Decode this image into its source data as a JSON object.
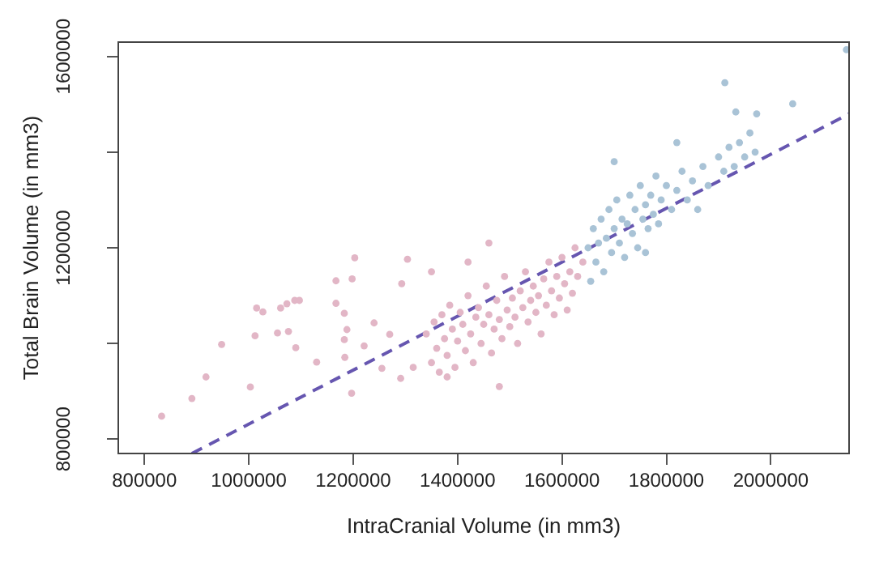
{
  "chart_data": {
    "type": "scatter",
    "xlabel": "IntraCranial Volume (in mm3)",
    "ylabel": "Total Brain Volume (in mm3)",
    "xlim": [
      750000,
      2150000
    ],
    "xticks": [
      800000,
      1000000,
      1200000,
      1400000,
      1600000,
      1800000,
      2000000
    ],
    "ylim": [
      770000,
      1630000
    ],
    "yticks": [
      800000,
      {
        "value": 1000000,
        "label": null
      },
      1200000,
      {
        "value": 1400000,
        "label": null
      },
      1600000
    ],
    "grid": false,
    "legend": false,
    "marker": "circle",
    "series": [
      {
        "color": "#e2b6c6",
        "x": [
          833000,
          891000,
          918000,
          948000,
          1003000,
          1015000,
          1027000,
          1012000,
          1061000,
          1055000,
          1073000,
          1088000,
          1097000,
          1076000,
          1090000,
          1130000,
          1167000,
          1167000,
          1183000,
          1198000,
          1203000,
          1183000,
          1188000,
          1197000,
          1184000,
          1240000,
          1221000,
          1255000,
          1270000,
          1293000,
          1304000,
          1291000,
          1315000,
          1340000,
          1350000,
          1355000,
          1360000,
          1365000,
          1370000,
          1375000,
          1380000,
          1385000,
          1390000,
          1395000,
          1400000,
          1405000,
          1410000,
          1415000,
          1420000,
          1425000,
          1430000,
          1435000,
          1440000,
          1445000,
          1450000,
          1455000,
          1460000,
          1465000,
          1470000,
          1475000,
          1480000,
          1485000,
          1490000,
          1495000,
          1500000,
          1505000,
          1510000,
          1515000,
          1520000,
          1525000,
          1530000,
          1535000,
          1540000,
          1545000,
          1550000,
          1555000,
          1560000,
          1565000,
          1570000,
          1575000,
          1580000,
          1585000,
          1590000,
          1595000,
          1600000,
          1605000,
          1610000,
          1615000,
          1620000,
          1625000,
          1630000,
          1640000,
          1420000,
          1460000,
          1350000,
          1480000,
          1380000
        ],
        "values": [
          848000,
          885000,
          930000,
          998000,
          909000,
          1074000,
          1066000,
          1016000,
          1074000,
          1022000,
          1083000,
          1090000,
          1090000,
          1025000,
          991000,
          961000,
          1131000,
          1084000,
          1063000,
          1135000,
          1179000,
          1008000,
          1029000,
          896000,
          971000,
          1043000,
          995000,
          948000,
          1019000,
          1125000,
          1176000,
          927000,
          950000,
          1020000,
          960000,
          1045000,
          990000,
          940000,
          1060000,
          1010000,
          975000,
          1080000,
          1030000,
          950000,
          1005000,
          1065000,
          1040000,
          985000,
          1100000,
          1020000,
          960000,
          1055000,
          1075000,
          1000000,
          1040000,
          1120000,
          1060000,
          980000,
          1030000,
          1090000,
          1050000,
          1010000,
          1140000,
          1070000,
          1035000,
          1095000,
          1055000,
          1000000,
          1110000,
          1075000,
          1150000,
          1045000,
          1090000,
          1120000,
          1065000,
          1100000,
          1020000,
          1135000,
          1080000,
          1170000,
          1110000,
          1060000,
          1140000,
          1095000,
          1180000,
          1125000,
          1070000,
          1150000,
          1105000,
          1200000,
          1140000,
          1170000,
          1170000,
          1210000,
          1150000,
          910000,
          930000
        ]
      },
      {
        "color": "#a9c3d6",
        "x": [
          1650000,
          1655000,
          1660000,
          1665000,
          1670000,
          1675000,
          1680000,
          1685000,
          1690000,
          1695000,
          1700000,
          1705000,
          1710000,
          1715000,
          1720000,
          1725000,
          1730000,
          1735000,
          1740000,
          1745000,
          1750000,
          1755000,
          1760000,
          1765000,
          1770000,
          1775000,
          1780000,
          1785000,
          1790000,
          1800000,
          1810000,
          1820000,
          1830000,
          1840000,
          1850000,
          1860000,
          1870000,
          1880000,
          1900000,
          1910000,
          1920000,
          1930000,
          1940000,
          1950000,
          1960000,
          1970000,
          1912000,
          2145000,
          2042000,
          1973000,
          1933000,
          1760000,
          1700000,
          1820000
        ],
        "values": [
          1200000,
          1130000,
          1240000,
          1170000,
          1210000,
          1260000,
          1150000,
          1220000,
          1280000,
          1190000,
          1240000,
          1300000,
          1210000,
          1260000,
          1180000,
          1250000,
          1310000,
          1230000,
          1280000,
          1200000,
          1330000,
          1260000,
          1290000,
          1240000,
          1310000,
          1270000,
          1350000,
          1250000,
          1300000,
          1330000,
          1280000,
          1320000,
          1360000,
          1300000,
          1340000,
          1280000,
          1370000,
          1330000,
          1390000,
          1360000,
          1410000,
          1370000,
          1420000,
          1390000,
          1440000,
          1400000,
          1545000,
          1614000,
          1501000,
          1480000,
          1484000,
          1190000,
          1380000,
          1420000
        ]
      },
      {
        "type": "line",
        "color": "#6656b0",
        "marker": "none",
        "line_style": "dashed",
        "x": [
          891000,
          2150000
        ],
        "values": [
          770000,
          1480000
        ]
      }
    ]
  }
}
